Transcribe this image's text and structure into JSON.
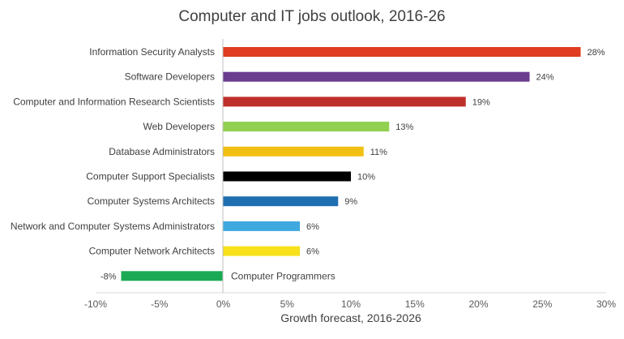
{
  "chart_data": {
    "type": "bar",
    "orientation": "horizontal",
    "title": "Computer and IT jobs outlook, 2016-26",
    "xlabel": "Growth forecast, 2016-2026",
    "ylabel": "",
    "xlim": [
      -10,
      30
    ],
    "xticks": [
      "-10%",
      "-5%",
      "0%",
      "5%",
      "10%",
      "15%",
      "20%",
      "25%",
      "30%"
    ],
    "grid": false,
    "legend": "none",
    "categories": [
      "Information Security Analysts",
      "Software Developers",
      "Computer and Information Research Scientists",
      "Web Developers",
      "Database Administrators",
      "Computer Support Specialists",
      "Computer Systems Architects",
      "Network and Computer Systems Administrators",
      "Computer Network Architects",
      "Computer Programmers"
    ],
    "values": [
      28,
      24,
      19,
      13,
      11,
      10,
      9,
      6,
      6,
      -8
    ],
    "data_labels": [
      "28%",
      "24%",
      "19%",
      "13%",
      "11%",
      "10%",
      "9%",
      "6%",
      "6%",
      "-8%"
    ],
    "colors": [
      "#e03c1f",
      "#6a3d8f",
      "#c0302a",
      "#92d050",
      "#f2c012",
      "#000000",
      "#1f6fb0",
      "#3fa9df",
      "#f7e11a",
      "#1aaa55"
    ]
  }
}
